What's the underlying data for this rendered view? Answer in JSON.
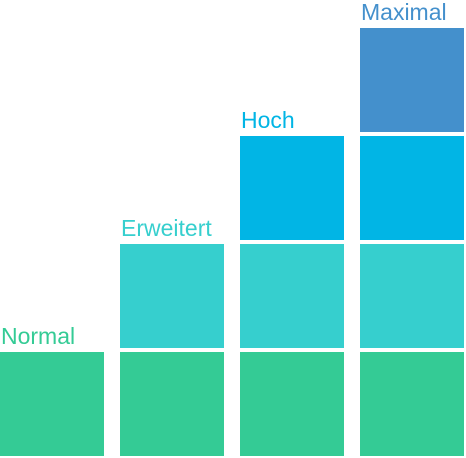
{
  "colors": {
    "tier1": "#34CB95",
    "tier2": "#36CFCE",
    "tier3": "#01B5E5",
    "tier4": "#4490CC"
  },
  "levels": [
    {
      "label": "Normal",
      "label_color": "#34CB95",
      "tiers": [
        "tier1"
      ]
    },
    {
      "label": "Erweitert",
      "label_color": "#36CFCE",
      "tiers": [
        "tier1",
        "tier2"
      ]
    },
    {
      "label": "Hoch",
      "label_color": "#01B5E5",
      "tiers": [
        "tier1",
        "tier2",
        "tier3"
      ]
    },
    {
      "label": "Maximal",
      "label_color": "#4490CC",
      "tiers": [
        "tier1",
        "tier2",
        "tier3",
        "tier4"
      ]
    }
  ]
}
